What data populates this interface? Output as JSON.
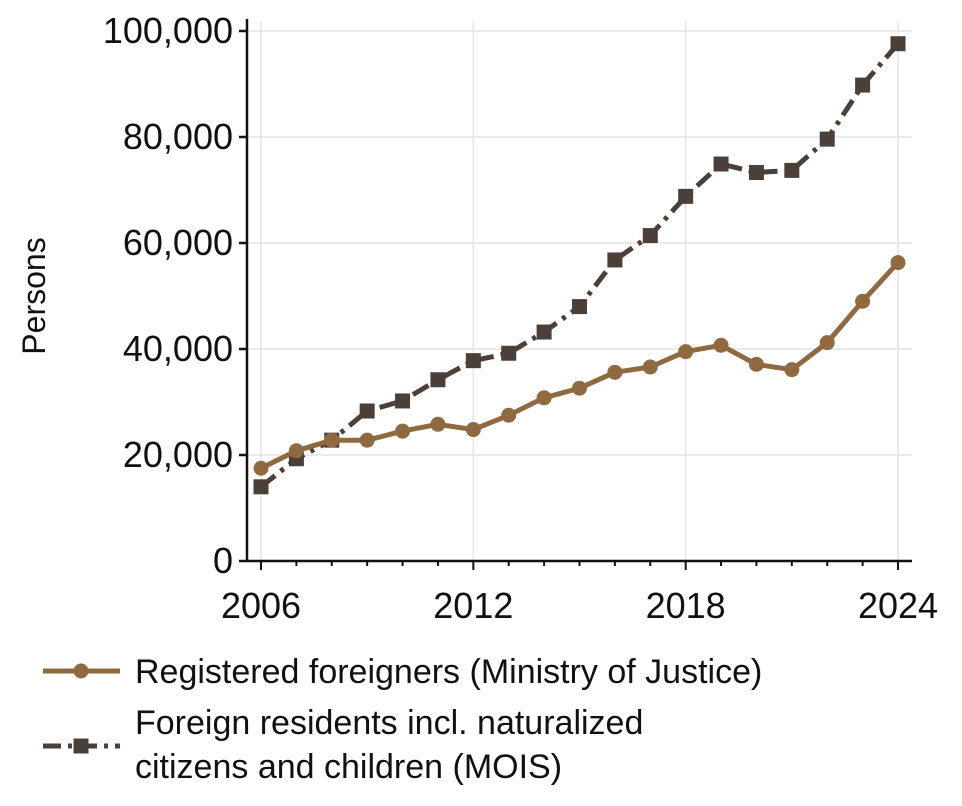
{
  "chart_data": {
    "type": "line",
    "title": "",
    "xlabel": "",
    "ylabel": "Persons",
    "x": [
      2006,
      2007,
      2008,
      2009,
      2010,
      2011,
      2012,
      2013,
      2014,
      2015,
      2016,
      2017,
      2018,
      2019,
      2020,
      2021,
      2022,
      2023,
      2024
    ],
    "xlim": [
      2006,
      2024
    ],
    "ylim": [
      0,
      100000
    ],
    "x_ticks": [
      2006,
      2012,
      2018,
      2024
    ],
    "x_tick_labels": [
      "2006",
      "2012",
      "2018",
      "2024"
    ],
    "y_ticks": [
      0,
      20000,
      40000,
      60000,
      80000,
      100000
    ],
    "y_tick_labels": [
      "0",
      "20,000",
      "40,000",
      "60,000",
      "80,000",
      "100,000"
    ],
    "grid": true,
    "legend_position": "bottom",
    "series": [
      {
        "name": "Registered foreigners (Ministry of Justice)",
        "color": "#8f6a40",
        "marker": "circle",
        "line_style": "solid",
        "values": [
          17500,
          20800,
          22800,
          22800,
          24500,
          25800,
          24800,
          27500,
          30800,
          32600,
          35600,
          36600,
          39500,
          40700,
          37100,
          36100,
          41200,
          49000,
          56300
        ]
      },
      {
        "name": "Foreign residents incl. naturalized citizens and children (MOIS)",
        "legend_lines": [
          "Foreign residents incl. naturalized",
          "citizens and children (MOIS)"
        ],
        "color": "#4a4039",
        "marker": "square",
        "line_style": "dashdot",
        "values": [
          14000,
          19300,
          22800,
          28300,
          30200,
          34200,
          37800,
          39200,
          43200,
          48000,
          56800,
          61400,
          68800,
          74900,
          73300,
          73700,
          79600,
          89800,
          97600
        ]
      }
    ]
  }
}
